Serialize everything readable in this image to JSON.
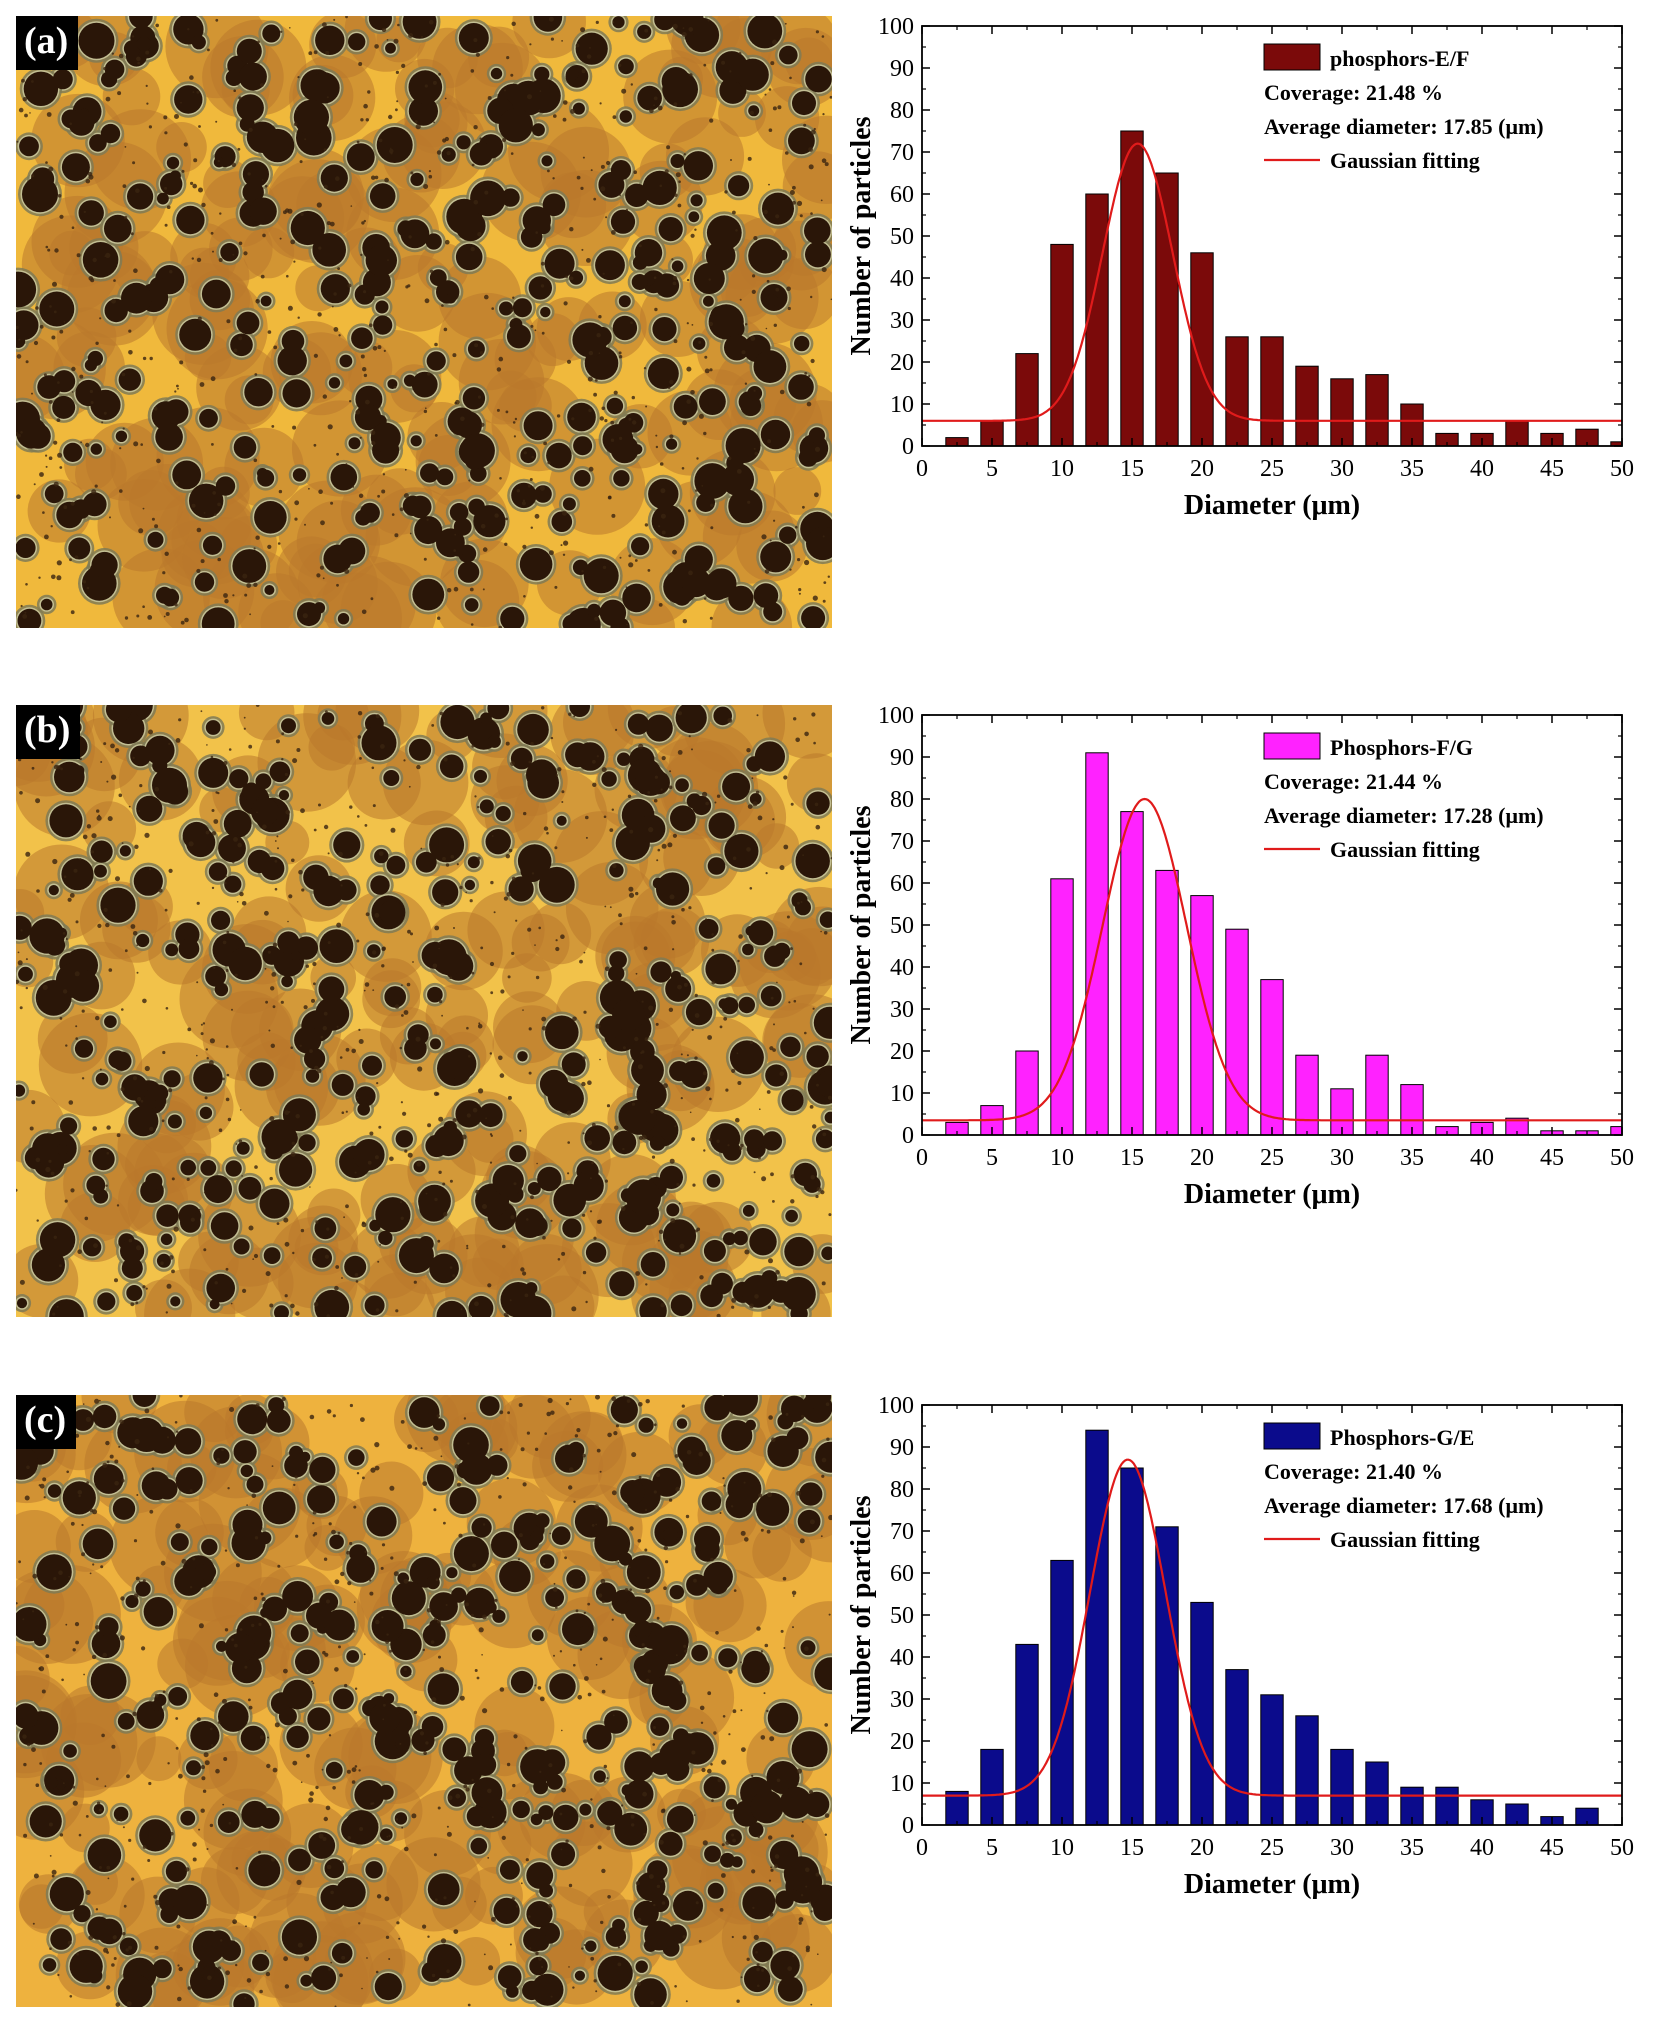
{
  "panels": [
    {
      "label": "(a)",
      "colors": {
        "bar": "#7b0a0a",
        "fit": "#e01b1b",
        "base": "#f0b93c"
      },
      "chart_data": {
        "type": "bar",
        "series_name": "phosphors-E/F",
        "coverage": "Coverage: 21.48 %",
        "avg_diameter": "Average diameter: 17.85 (μm)",
        "fit_label": "Gaussian fitting",
        "xlabel": "Diameter (μm)",
        "ylabel": "Number of particles",
        "xlim": [
          0,
          50
        ],
        "ylim": [
          0,
          100
        ],
        "x_ticks": [
          "0",
          "5",
          "10",
          "15",
          "20",
          "25",
          "30",
          "35",
          "40",
          "45",
          "50"
        ],
        "y_ticks": [
          "0",
          "10",
          "20",
          "30",
          "40",
          "50",
          "60",
          "70",
          "80",
          "90",
          "100"
        ],
        "bin_centers": [
          2.5,
          5,
          7.5,
          10,
          12.5,
          15,
          17.5,
          20,
          22.5,
          25,
          27.5,
          30,
          32.5,
          35,
          37.5,
          40,
          42.5,
          45,
          47.5,
          50
        ],
        "values": [
          2,
          6,
          22,
          48,
          60,
          75,
          65,
          46,
          26,
          26,
          19,
          16,
          17,
          10,
          3,
          3,
          6,
          3,
          4,
          1
        ],
        "gaussian": {
          "y0": 6,
          "A": 66,
          "xc": 15.4,
          "w": 5.0
        }
      }
    },
    {
      "label": "(b)",
      "colors": {
        "bar": "#ff22ff",
        "fit": "#e01b1b",
        "base": "#f2c24a"
      },
      "chart_data": {
        "type": "bar",
        "series_name": "Phosphors-F/G",
        "coverage": "Coverage: 21.44 %",
        "avg_diameter": "Average diameter: 17.28 (μm)",
        "fit_label": "Gaussian fitting",
        "xlabel": "Diameter (μm)",
        "ylabel": "Number of particles",
        "xlim": [
          0,
          50
        ],
        "ylim": [
          0,
          100
        ],
        "x_ticks": [
          "0",
          "5",
          "10",
          "15",
          "20",
          "25",
          "30",
          "35",
          "40",
          "45",
          "50"
        ],
        "y_ticks": [
          "0",
          "10",
          "20",
          "30",
          "40",
          "50",
          "60",
          "70",
          "80",
          "90",
          "100"
        ],
        "bin_centers": [
          2.5,
          5,
          7.5,
          10,
          12.5,
          15,
          17.5,
          20,
          22.5,
          25,
          27.5,
          30,
          32.5,
          35,
          37.5,
          40,
          42.5,
          45,
          47.5,
          50
        ],
        "values": [
          3,
          7,
          20,
          61,
          91,
          77,
          63,
          57,
          49,
          37,
          19,
          11,
          19,
          12,
          2,
          3,
          4,
          1,
          1,
          2
        ],
        "gaussian": {
          "y0": 3.5,
          "A": 76.5,
          "xc": 15.9,
          "w": 6.0
        }
      }
    },
    {
      "label": "(c)",
      "colors": {
        "bar": "#0b0b8c",
        "fit": "#e01b1b",
        "base": "#eeb23e"
      },
      "chart_data": {
        "type": "bar",
        "series_name": "Phosphors-G/E",
        "coverage": "Coverage: 21.40 %",
        "avg_diameter": "Average diameter: 17.68 (μm)",
        "fit_label": "Gaussian fitting",
        "xlabel": "Diameter (μm)",
        "ylabel": "Number of particles",
        "xlim": [
          0,
          50
        ],
        "ylim": [
          0,
          100
        ],
        "x_ticks": [
          "0",
          "5",
          "10",
          "15",
          "20",
          "25",
          "30",
          "35",
          "40",
          "45",
          "50"
        ],
        "y_ticks": [
          "0",
          "10",
          "20",
          "30",
          "40",
          "50",
          "60",
          "70",
          "80",
          "90",
          "100"
        ],
        "bin_centers": [
          2.5,
          5,
          7.5,
          10,
          12.5,
          15,
          17.5,
          20,
          22.5,
          25,
          27.5,
          30,
          32.5,
          35,
          37.5,
          40,
          42.5,
          45,
          47.5
        ],
        "values": [
          8,
          18,
          43,
          63,
          94,
          85,
          71,
          53,
          37,
          31,
          26,
          18,
          15,
          9,
          9,
          6,
          5,
          2,
          4
        ],
        "gaussian": {
          "y0": 7,
          "A": 80,
          "xc": 14.7,
          "w": 5.4
        }
      }
    }
  ]
}
